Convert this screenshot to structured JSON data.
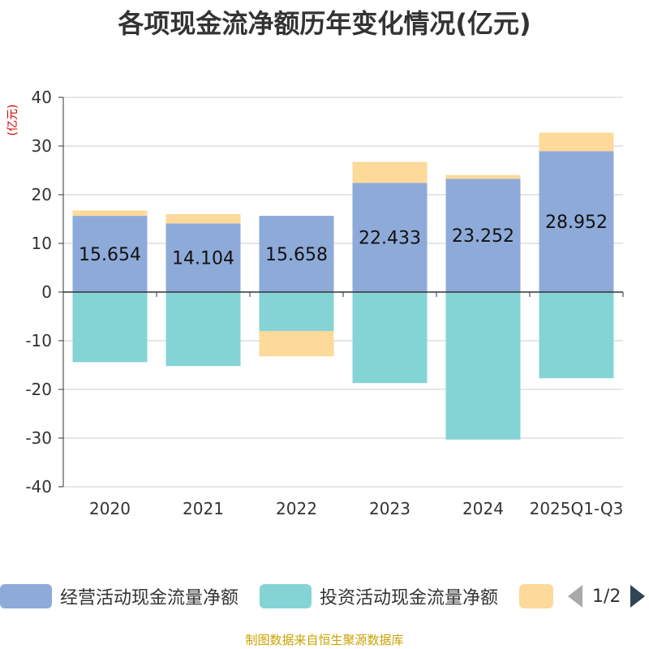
{
  "title": "各项现金流净额历年变化情况(亿元)",
  "source": "制图数据来自恒生聚源数据库",
  "pager": {
    "text": "1/2"
  },
  "colors": {
    "operating": "#8eaad8",
    "investing": "#84d4d6",
    "financing": "#fdd99a",
    "axis": "#333333",
    "grid": "#cccccc",
    "unit": "#d40000"
  },
  "chart_data": {
    "type": "bar",
    "stacked": true,
    "title": "各项现金流净额历年变化情况(亿元)",
    "ylabel": "(亿元)",
    "ylim": [
      -40,
      40
    ],
    "yticks": [
      40,
      30,
      20,
      10,
      0,
      -10,
      -20,
      -30,
      -40
    ],
    "categories": [
      "2020",
      "2021",
      "2022",
      "2023",
      "2024",
      "2025Q1-Q3"
    ],
    "series": [
      {
        "name": "经营活动现金流量净额",
        "key": "operating",
        "values": [
          15.654,
          14.104,
          15.658,
          22.433,
          23.252,
          28.952
        ],
        "labels": [
          "15.654",
          "14.104",
          "15.658",
          "22.433",
          "23.252",
          "28.952"
        ]
      },
      {
        "name": "投资活动现金流量净额",
        "key": "investing",
        "values": [
          -14.4,
          -15.2,
          -8.0,
          -18.7,
          -30.3,
          -17.7
        ]
      },
      {
        "name": "",
        "key": "financing",
        "values": [
          1.1,
          1.9,
          -5.2,
          4.3,
          0.8,
          3.8
        ]
      }
    ],
    "legend": [
      {
        "name": "经营活动现金流量净额",
        "key": "operating"
      },
      {
        "name": "投资活动现金流量净额",
        "key": "investing"
      },
      {
        "name": "",
        "key": "financing"
      }
    ],
    "legend_position": "bottom",
    "grid": true
  }
}
